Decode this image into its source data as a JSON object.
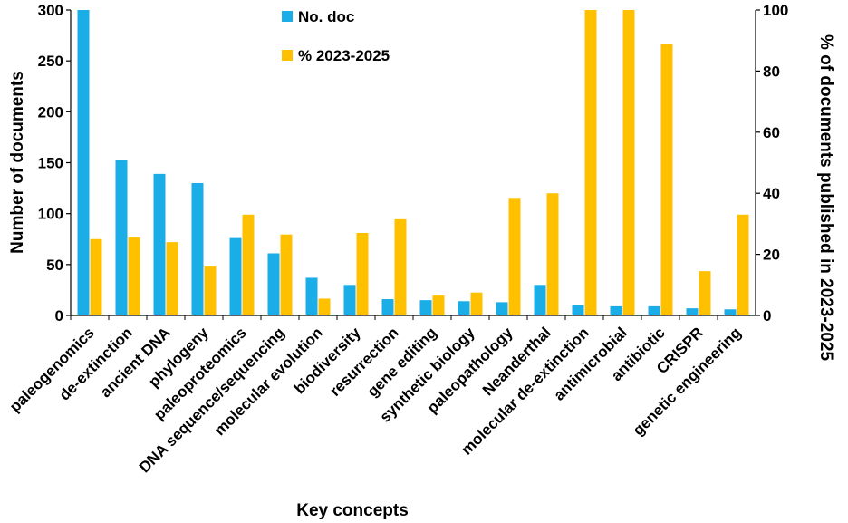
{
  "chart_data": {
    "type": "bar",
    "title": "",
    "xlabel": "Key concepts",
    "ylabel": "Number of documents",
    "y2label": "% of documents published in 2023-2025",
    "ylim": [
      0,
      300
    ],
    "y2lim": [
      0,
      100
    ],
    "yticks": [
      "0",
      "50",
      "100",
      "150",
      "200",
      "250",
      "300"
    ],
    "y2ticks": [
      "0",
      "20",
      "40",
      "60",
      "80",
      "100"
    ],
    "legend_position": "top-center",
    "categories": [
      "paleogenomics",
      "de-extinction",
      "ancient DNA",
      "phylogeny",
      "paleoproteomics",
      "DNA sequence/sequencing",
      "molecular evolution",
      "biodiversity",
      "resurrection",
      "gene editing",
      "synthetic biology",
      "paleopathology",
      "Neanderthal",
      "molecular de-extinction",
      "antimicrobial",
      "antibiotic",
      "CRISPR",
      "genetic engineering"
    ],
    "series": [
      {
        "name": "No. doc",
        "axis": "left",
        "color": "#1AADE8",
        "values": [
          300,
          153,
          139,
          130,
          76,
          61,
          37,
          30,
          16,
          15,
          14,
          13,
          30,
          10,
          9,
          9,
          7,
          6
        ]
      },
      {
        "name": "% 2023-2025",
        "axis": "right",
        "color": "#FFC000",
        "values": [
          25,
          25.5,
          24,
          16,
          33,
          26.5,
          5.5,
          27,
          31.5,
          6.5,
          7.5,
          38.5,
          40,
          100,
          100,
          89,
          14.5,
          33
        ]
      }
    ]
  }
}
